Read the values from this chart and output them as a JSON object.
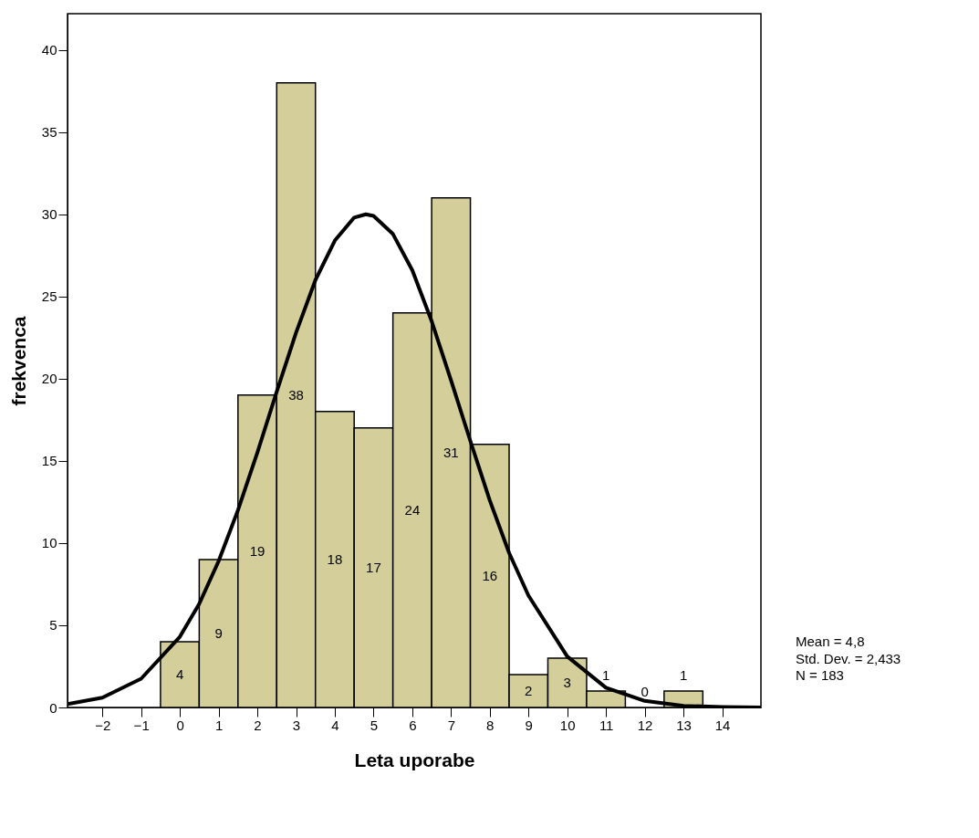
{
  "chart_data": {
    "type": "histogram",
    "xlabel": "Leta uporabe",
    "ylabel": "frekvenca",
    "bins": [
      -0.5,
      0.5,
      1.5,
      2.5,
      3.5,
      4.5,
      5.5,
      6.5,
      7.5,
      8.5,
      9.5,
      10.5,
      11.5,
      12.5,
      13.5
    ],
    "values": [
      4,
      9,
      19,
      38,
      18,
      17,
      24,
      31,
      16,
      2,
      3,
      1,
      0,
      1
    ],
    "color": "#d3ce9a",
    "value_labels": [
      "4",
      "9",
      "19",
      "38",
      "18",
      "17",
      "24",
      "31",
      "16",
      "2",
      "3",
      "1",
      "0",
      "1"
    ],
    "series": [
      {
        "type": "line",
        "color": "#000000",
        "x": [
          -2.9,
          -2,
          -1,
          0,
          0.5,
          1,
          1.5,
          2,
          2.5,
          3,
          3.5,
          4,
          4.5,
          4.8,
          5,
          5.5,
          6,
          6.5,
          7,
          7.5,
          8,
          8.5,
          9,
          10,
          11,
          12,
          13,
          14,
          15
        ],
        "values": [
          0.2,
          0.6,
          1.75,
          4.3,
          6.3,
          8.9,
          12.0,
          15.5,
          19.2,
          22.8,
          26.0,
          28.4,
          29.8,
          30,
          29.9,
          28.8,
          26.6,
          23.5,
          19.9,
          16.2,
          12.6,
          9.4,
          6.8,
          3.1,
          1.2,
          0.4,
          0.1,
          0.03,
          0.0
        ]
      }
    ],
    "xlim": [
      -2.9,
      15
    ],
    "xticks": [
      -2,
      -1,
      0,
      1,
      2,
      3,
      4,
      5,
      6,
      7,
      8,
      9,
      10,
      11,
      12,
      13,
      14
    ],
    "ylim": [
      0,
      42.2
    ],
    "yticks": [
      0,
      5,
      10,
      15,
      20,
      25,
      30,
      35,
      40
    ],
    "grid": false,
    "annotations": [
      "Mean = 4,8",
      "Std. Dev. = 2,433",
      "N = 183"
    ]
  }
}
